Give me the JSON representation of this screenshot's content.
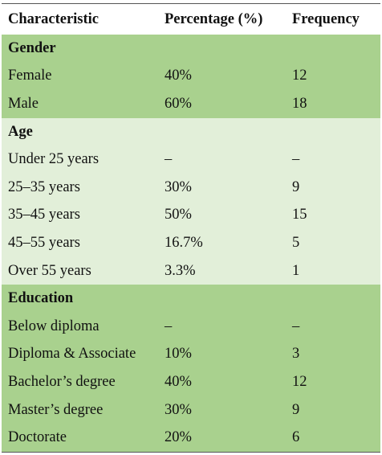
{
  "table": {
    "header": [
      "Characteristic",
      "Percentage (%)",
      "Frequency"
    ],
    "sections": [
      {
        "title": "Gender",
        "rows": [
          [
            "Female",
            "40%",
            "12"
          ],
          [
            "Male",
            "60%",
            "18"
          ]
        ]
      },
      {
        "title": "Age",
        "rows": [
          [
            "Under 25 years",
            "–",
            "–"
          ],
          [
            "25–35 years",
            "30%",
            "9"
          ],
          [
            "35–45 years",
            "50%",
            "15"
          ],
          [
            "45–55 years",
            "16.7%",
            "5"
          ],
          [
            "Over 55 years",
            "3.3%",
            "1"
          ]
        ]
      },
      {
        "title": "Education",
        "rows": [
          [
            "Below diploma",
            "–",
            "–"
          ],
          [
            "Diploma & Associate",
            "10%",
            "3"
          ],
          [
            "Bachelor’s degree",
            "40%",
            "12"
          ],
          [
            "Master’s degree",
            "30%",
            "9"
          ],
          [
            "Doctorate",
            "20%",
            "6"
          ]
        ]
      }
    ]
  }
}
